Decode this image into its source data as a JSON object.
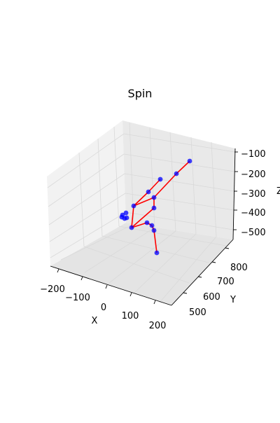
{
  "chart_data": {
    "type": "scatter",
    "title": "Spin",
    "xlabel": "X",
    "ylabel": "Y",
    "zlabel": "Z",
    "xticks": [
      "−200",
      "−100",
      "0",
      "100",
      "200"
    ],
    "yticks": [
      "500",
      "600",
      "700",
      "800"
    ],
    "zticks": [
      "−500",
      "−400",
      "−300",
      "−200",
      "−100"
    ],
    "grid": true,
    "colors": {
      "marker": "#0000ff",
      "bone": "#ff0000",
      "pane": "#f2f2f2",
      "grid": "#d9d9d9"
    },
    "markers": [
      {
        "x": 271,
        "y": 230
      },
      {
        "x": 252,
        "y": 248
      },
      {
        "x": 229,
        "y": 256
      },
      {
        "x": 212,
        "y": 274
      },
      {
        "x": 220,
        "y": 282
      },
      {
        "x": 191,
        "y": 294
      },
      {
        "x": 220,
        "y": 297
      },
      {
        "x": 180,
        "y": 304
      },
      {
        "x": 175,
        "y": 307
      },
      {
        "x": 181,
        "y": 311
      },
      {
        "x": 174,
        "y": 310
      },
      {
        "x": 178,
        "y": 312
      },
      {
        "x": 210,
        "y": 318
      },
      {
        "x": 217,
        "y": 322
      },
      {
        "x": 188,
        "y": 325
      },
      {
        "x": 220,
        "y": 329
      },
      {
        "x": 224,
        "y": 361
      }
    ],
    "bones": [
      [
        0,
        1
      ],
      [
        1,
        4
      ],
      [
        4,
        6
      ],
      [
        6,
        14
      ],
      [
        14,
        5
      ],
      [
        5,
        4
      ],
      [
        5,
        3
      ],
      [
        3,
        2
      ],
      [
        14,
        12
      ],
      [
        12,
        13
      ],
      [
        13,
        15
      ],
      [
        15,
        16
      ]
    ]
  }
}
